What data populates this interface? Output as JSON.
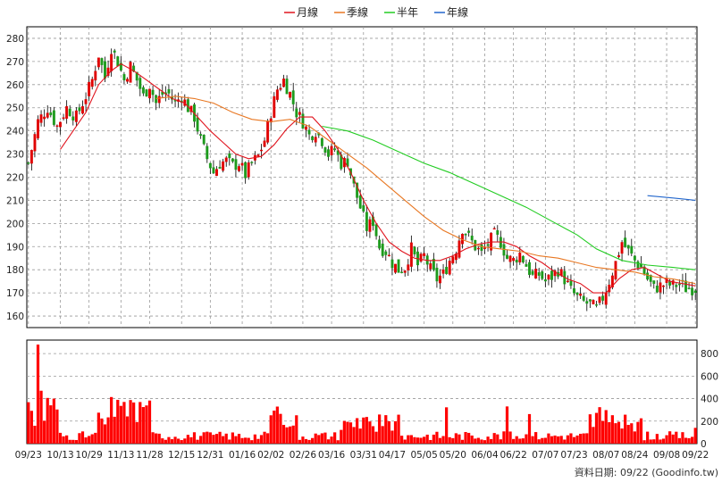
{
  "chart_data": {
    "type": "candlestick",
    "legend": [
      {
        "name": "月線",
        "color": "#e0141e"
      },
      {
        "name": "季線",
        "color": "#e87722"
      },
      {
        "name": "半年",
        "color": "#22cc22"
      },
      {
        "name": "年線",
        "color": "#2266cc"
      }
    ],
    "colors": {
      "up": "#e00000",
      "down": "#1d9b1d",
      "volume": "#ff0000",
      "grid": "#999999",
      "frame": "#000000"
    },
    "price_axis": {
      "ylim": [
        155,
        285
      ],
      "ticks": [
        160,
        170,
        180,
        190,
        200,
        210,
        220,
        230,
        240,
        250,
        260,
        270,
        280
      ]
    },
    "volume_axis": {
      "ylim": [
        0,
        920
      ],
      "ticks": [
        0,
        200,
        400,
        600,
        800
      ]
    },
    "date_labels": [
      "09/23",
      "10/13",
      "10/29",
      "11/13",
      "11/28",
      "12/15",
      "12/31",
      "01/16",
      "02/02",
      "02/26",
      "03/16",
      "03/31",
      "04/17",
      "05/05",
      "05/20",
      "06/04",
      "06/22",
      "07/07",
      "07/23",
      "08/07",
      "08/24",
      "09/08",
      "09/22"
    ],
    "price_path": [
      [
        0,
        226
      ],
      [
        3,
        244
      ],
      [
        6,
        250
      ],
      [
        9,
        242
      ],
      [
        12,
        250
      ],
      [
        15,
        246
      ],
      [
        18,
        255
      ],
      [
        20,
        262
      ],
      [
        22,
        273
      ],
      [
        24,
        263
      ],
      [
        26,
        276
      ],
      [
        28,
        270
      ],
      [
        30,
        262
      ],
      [
        32,
        268
      ],
      [
        34,
        262
      ],
      [
        36,
        255
      ],
      [
        38,
        260
      ],
      [
        40,
        252
      ],
      [
        42,
        256
      ],
      [
        44,
        256
      ],
      [
        46,
        252
      ],
      [
        48,
        255
      ],
      [
        50,
        250
      ],
      [
        52,
        246
      ],
      [
        54,
        236
      ],
      [
        56,
        228
      ],
      [
        58,
        222
      ],
      [
        60,
        226
      ],
      [
        62,
        227
      ],
      [
        64,
        225
      ],
      [
        66,
        226
      ],
      [
        68,
        221
      ],
      [
        70,
        226
      ],
      [
        72,
        229
      ],
      [
        74,
        236
      ],
      [
        76,
        248
      ],
      [
        78,
        258
      ],
      [
        80,
        262
      ],
      [
        82,
        256
      ],
      [
        84,
        248
      ],
      [
        86,
        244
      ],
      [
        88,
        238
      ],
      [
        90,
        240
      ],
      [
        92,
        236
      ],
      [
        94,
        230
      ],
      [
        96,
        232
      ],
      [
        98,
        226
      ],
      [
        100,
        227
      ],
      [
        102,
        216
      ],
      [
        104,
        207
      ],
      [
        106,
        198
      ],
      [
        108,
        201
      ],
      [
        110,
        190
      ],
      [
        112,
        188
      ],
      [
        114,
        183
      ],
      [
        116,
        180
      ],
      [
        118,
        181
      ],
      [
        120,
        189
      ],
      [
        122,
        182
      ],
      [
        124,
        186
      ],
      [
        126,
        180
      ],
      [
        128,
        176
      ],
      [
        130,
        178
      ],
      [
        132,
        184
      ],
      [
        134,
        189
      ],
      [
        136,
        198
      ],
      [
        138,
        194
      ],
      [
        140,
        190
      ],
      [
        142,
        187
      ],
      [
        144,
        191
      ],
      [
        146,
        195
      ],
      [
        148,
        192
      ],
      [
        150,
        185
      ],
      [
        152,
        184
      ],
      [
        154,
        187
      ],
      [
        156,
        182
      ],
      [
        158,
        177
      ],
      [
        160,
        178
      ],
      [
        162,
        175
      ],
      [
        164,
        177
      ],
      [
        166,
        180
      ],
      [
        168,
        176
      ],
      [
        170,
        171
      ],
      [
        172,
        168
      ],
      [
        174,
        166
      ],
      [
        176,
        165
      ],
      [
        178,
        163
      ],
      [
        180,
        168
      ],
      [
        182,
        175
      ],
      [
        184,
        183
      ],
      [
        186,
        192
      ],
      [
        188,
        188
      ],
      [
        190,
        184
      ],
      [
        192,
        181
      ],
      [
        194,
        176
      ],
      [
        196,
        172
      ],
      [
        198,
        173
      ],
      [
        200,
        174
      ],
      [
        202,
        173
      ],
      [
        204,
        174
      ],
      [
        206,
        172
      ],
      [
        209,
        172
      ]
    ],
    "ma20": [
      [
        10,
        232
      ],
      [
        14,
        240
      ],
      [
        18,
        248
      ],
      [
        22,
        260
      ],
      [
        26,
        266
      ],
      [
        29,
        269
      ],
      [
        33,
        266
      ],
      [
        37,
        262
      ],
      [
        41,
        258
      ],
      [
        45,
        254
      ],
      [
        49,
        252
      ],
      [
        53,
        246
      ],
      [
        57,
        240
      ],
      [
        61,
        235
      ],
      [
        65,
        230
      ],
      [
        69,
        228
      ],
      [
        73,
        229
      ],
      [
        77,
        234
      ],
      [
        81,
        241
      ],
      [
        85,
        246
      ],
      [
        89,
        246
      ],
      [
        93,
        240
      ],
      [
        97,
        232
      ],
      [
        101,
        222
      ],
      [
        105,
        210
      ],
      [
        109,
        200
      ],
      [
        113,
        192
      ],
      [
        117,
        188
      ],
      [
        121,
        185
      ],
      [
        125,
        184
      ],
      [
        129,
        184
      ],
      [
        133,
        186
      ],
      [
        137,
        189
      ],
      [
        141,
        191
      ],
      [
        145,
        192
      ],
      [
        149,
        192
      ],
      [
        153,
        190
      ],
      [
        157,
        186
      ],
      [
        161,
        183
      ],
      [
        165,
        179
      ],
      [
        169,
        176
      ],
      [
        173,
        174
      ],
      [
        177,
        170
      ],
      [
        181,
        170
      ],
      [
        185,
        176
      ],
      [
        189,
        180
      ],
      [
        193,
        181
      ],
      [
        197,
        178
      ],
      [
        201,
        175
      ],
      [
        205,
        174
      ],
      [
        209,
        173
      ]
    ],
    "ma60": [
      [
        40,
        254
      ],
      [
        46,
        255
      ],
      [
        52,
        254
      ],
      [
        58,
        252
      ],
      [
        64,
        248
      ],
      [
        70,
        245
      ],
      [
        76,
        244
      ],
      [
        82,
        245
      ],
      [
        88,
        242
      ],
      [
        94,
        236
      ],
      [
        100,
        230
      ],
      [
        106,
        224
      ],
      [
        112,
        217
      ],
      [
        118,
        210
      ],
      [
        124,
        203
      ],
      [
        130,
        197
      ],
      [
        136,
        193
      ],
      [
        142,
        190
      ],
      [
        148,
        189
      ],
      [
        154,
        188
      ],
      [
        160,
        186
      ],
      [
        166,
        185
      ],
      [
        172,
        183
      ],
      [
        178,
        181
      ],
      [
        184,
        180
      ],
      [
        190,
        179
      ],
      [
        196,
        177
      ],
      [
        202,
        176
      ],
      [
        209,
        174
      ]
    ],
    "ma120": [
      [
        92,
        242
      ],
      [
        100,
        240
      ],
      [
        108,
        236
      ],
      [
        116,
        231
      ],
      [
        124,
        226
      ],
      [
        132,
        222
      ],
      [
        140,
        217
      ],
      [
        148,
        212
      ],
      [
        156,
        207
      ],
      [
        164,
        201
      ],
      [
        172,
        195
      ],
      [
        178,
        189
      ],
      [
        186,
        184
      ],
      [
        194,
        182
      ],
      [
        202,
        181
      ],
      [
        209,
        180
      ]
    ],
    "ma240": [
      [
        194,
        212
      ],
      [
        202,
        211
      ],
      [
        209,
        210
      ]
    ]
  },
  "footer": {
    "source": "資料日期: 09/22 (Goodinfo.tw)"
  }
}
